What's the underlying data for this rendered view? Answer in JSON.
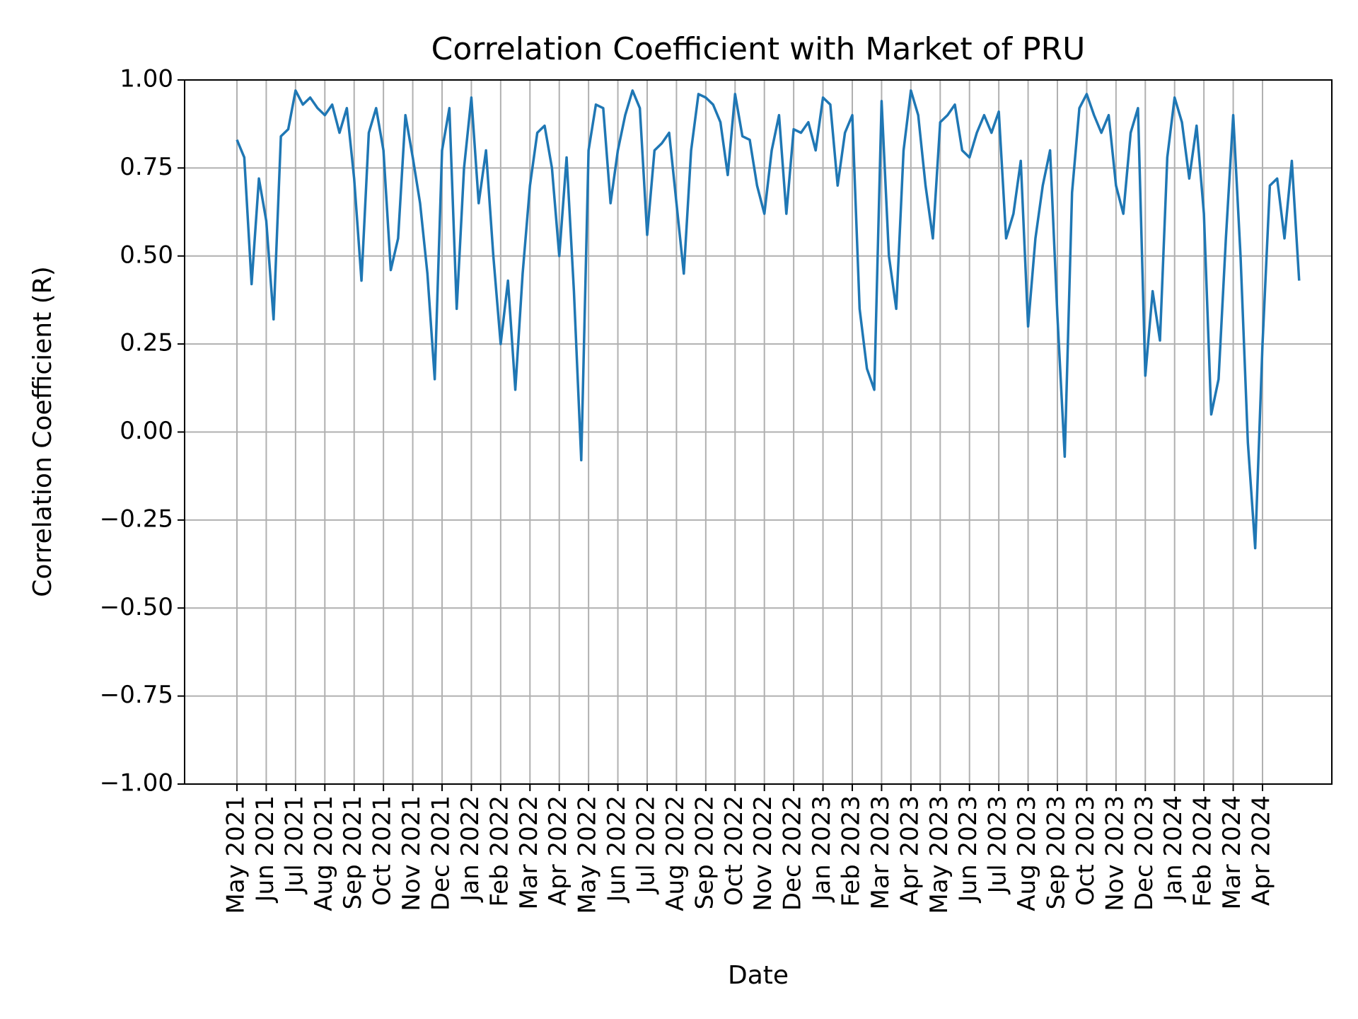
{
  "chart_data": {
    "type": "line",
    "title": "Correlation Coefficient with Market of PRU",
    "x_label": "Date",
    "y_label": "Correlation Coefficient (R)",
    "categories": [
      "May 2021",
      null,
      null,
      null,
      "Jun 2021",
      null,
      null,
      null,
      "Jul 2021",
      null,
      null,
      null,
      "Aug 2021",
      null,
      null,
      null,
      "Sep 2021",
      null,
      null,
      null,
      "Oct 2021",
      null,
      null,
      null,
      "Nov 2021",
      null,
      null,
      null,
      "Dec 2021",
      null,
      null,
      null,
      "Jan 2022",
      null,
      null,
      null,
      "Feb 2022",
      null,
      null,
      null,
      "Mar 2022",
      null,
      null,
      null,
      "Apr 2022",
      null,
      null,
      null,
      "May 2022",
      null,
      null,
      null,
      "Jun 2022",
      null,
      null,
      null,
      "Jul 2022",
      null,
      null,
      null,
      "Aug 2022",
      null,
      null,
      null,
      "Sep 2022",
      null,
      null,
      null,
      "Oct 2022",
      null,
      null,
      null,
      "Nov 2022",
      null,
      null,
      null,
      "Dec 2022",
      null,
      null,
      null,
      "Jan 2023",
      null,
      null,
      null,
      "Feb 2023",
      null,
      null,
      null,
      "Mar 2023",
      null,
      null,
      null,
      "Apr 2023",
      null,
      null,
      null,
      "May 2023",
      null,
      null,
      null,
      "Jun 2023",
      null,
      null,
      null,
      "Jul 2023",
      null,
      null,
      null,
      "Aug 2023",
      null,
      null,
      null,
      "Sep 2023",
      null,
      null,
      null,
      "Oct 2023",
      null,
      null,
      null,
      "Nov 2023",
      null,
      null,
      null,
      "Dec 2023",
      null,
      null,
      null,
      "Jan 2024",
      null,
      null,
      null,
      "Feb 2024",
      null,
      null,
      null,
      "Mar 2024",
      null,
      null,
      null,
      "Apr 2024",
      null,
      null,
      null,
      null,
      null
    ],
    "series": [
      {
        "name": "PRU",
        "color": "#1f77b4",
        "values": [
          0.83,
          0.78,
          0.42,
          0.72,
          0.6,
          0.32,
          0.84,
          0.86,
          0.97,
          0.93,
          0.95,
          0.92,
          0.9,
          0.93,
          0.85,
          0.92,
          0.72,
          0.43,
          0.85,
          0.92,
          0.8,
          0.46,
          0.55,
          0.9,
          0.78,
          0.65,
          0.45,
          0.15,
          0.8,
          0.92,
          0.35,
          0.75,
          0.95,
          0.65,
          0.8,
          0.5,
          0.25,
          0.43,
          0.12,
          0.45,
          0.7,
          0.85,
          0.87,
          0.75,
          0.5,
          0.78,
          0.4,
          -0.08,
          0.8,
          0.93,
          0.92,
          0.65,
          0.8,
          0.9,
          0.97,
          0.92,
          0.56,
          0.8,
          0.82,
          0.85,
          0.65,
          0.45,
          0.8,
          0.96,
          0.95,
          0.93,
          0.88,
          0.73,
          0.96,
          0.84,
          0.83,
          0.7,
          0.62,
          0.8,
          0.9,
          0.62,
          0.86,
          0.85,
          0.88,
          0.8,
          0.95,
          0.93,
          0.7,
          0.85,
          0.9,
          0.35,
          0.18,
          0.12,
          0.94,
          0.5,
          0.35,
          0.8,
          0.97,
          0.9,
          0.7,
          0.55,
          0.88,
          0.9,
          0.93,
          0.8,
          0.78,
          0.85,
          0.9,
          0.85,
          0.91,
          0.55,
          0.62,
          0.77,
          0.3,
          0.55,
          0.7,
          0.8,
          0.33,
          -0.07,
          0.68,
          0.92,
          0.96,
          0.9,
          0.85,
          0.9,
          0.7,
          0.62,
          0.85,
          0.92,
          0.16,
          0.4,
          0.26,
          0.78,
          0.95,
          0.88,
          0.72,
          0.87,
          0.62,
          0.05,
          0.15,
          0.55,
          0.9,
          0.5,
          -0.03,
          -0.33,
          0.25,
          0.7,
          0.72,
          0.55,
          0.77,
          0.43
        ]
      }
    ],
    "ylim": [
      -1,
      1
    ],
    "yticks": [
      {
        "value": -1,
        "label": "−1.00"
      },
      {
        "value": -0.75,
        "label": "−0.75"
      },
      {
        "value": -0.5,
        "label": "−0.50"
      },
      {
        "value": -0.25,
        "label": "−0.25"
      },
      {
        "value": 0,
        "label": "0.00"
      },
      {
        "value": 0.25,
        "label": "0.25"
      },
      {
        "value": 0.5,
        "label": "0.50"
      },
      {
        "value": 0.75,
        "label": "0.75"
      },
      {
        "value": 1,
        "label": "1.00"
      }
    ],
    "grid": true
  }
}
